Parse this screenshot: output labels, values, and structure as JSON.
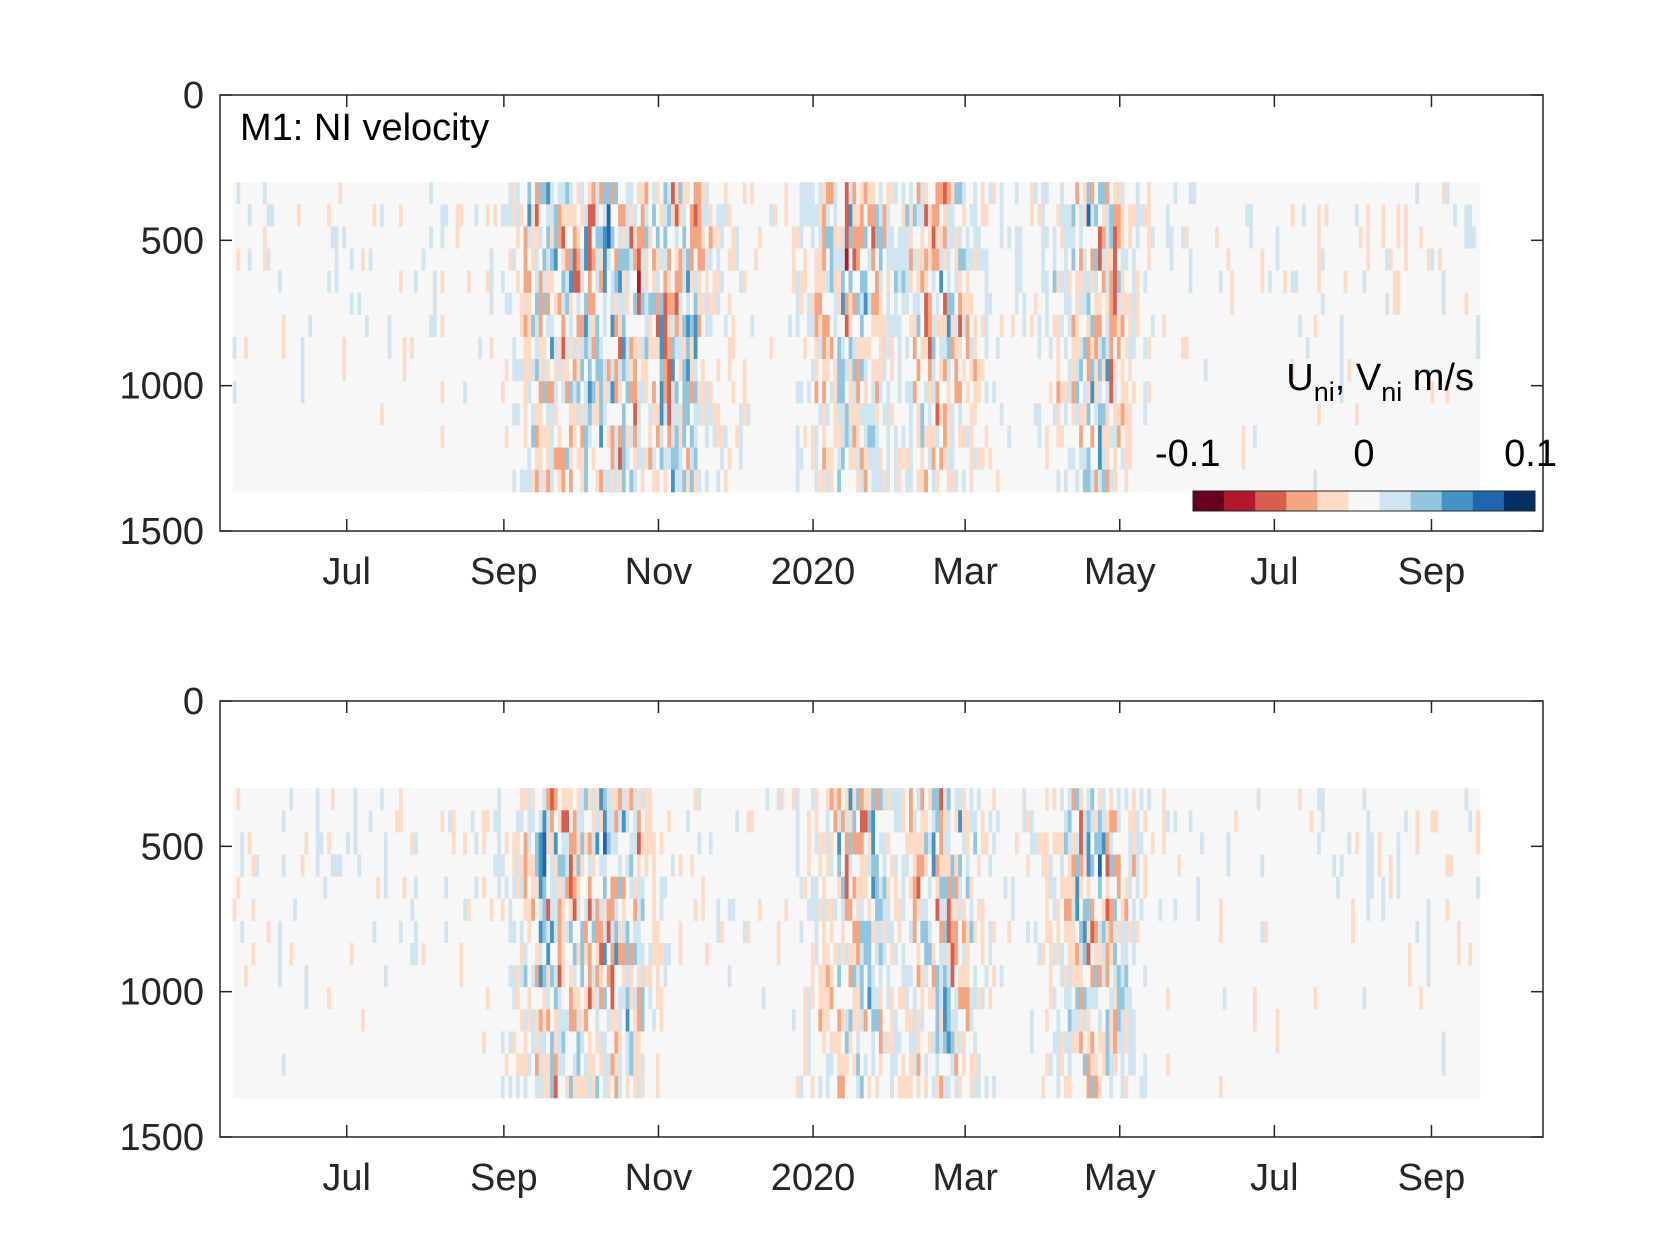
{
  "chart_data": [
    {
      "type": "heatmap",
      "panel_label": "M1: NI velocity",
      "variable": "U_ni",
      "x_tick_labels": [
        "Jul",
        "Sep",
        "Nov",
        "2020",
        "Mar",
        "May",
        "Jul",
        "Sep"
      ],
      "x_tick_dates": [
        "2019-07-01",
        "2019-09-01",
        "2019-11-01",
        "2020-01-01",
        "2020-03-01",
        "2020-05-01",
        "2020-07-01",
        "2020-09-01"
      ],
      "xlim": [
        "2019-05-12",
        "2020-10-15"
      ],
      "data_time_range": [
        "2019-05-17",
        "2020-09-20"
      ],
      "ylim": [
        0,
        1500
      ],
      "y_reversed": true,
      "y_ticks": [
        0,
        500,
        1000,
        1500
      ],
      "data_depth_range": [
        300,
        1365
      ],
      "color_range": [
        -0.1,
        0.1
      ],
      "colormap": "diverging red-white-blue",
      "colorbar": {
        "label_main_1": "U",
        "label_sub_1": "ni",
        "label_sep": ", ",
        "label_main_2": "V",
        "label_sub_2": "ni",
        "label_units": " m/s",
        "tick_labels": [
          "-0.1",
          "0",
          "0.1"
        ],
        "ticks": [
          -0.1,
          0,
          0.1
        ],
        "placement": "inside-bottom-right"
      },
      "energetic_periods": [
        "2019-09-20",
        "2019-10-15",
        "2019-11-10",
        "2020-01-15",
        "2020-02-20",
        "2020-04-20"
      ]
    },
    {
      "type": "heatmap",
      "variable": "V_ni",
      "x_tick_labels": [
        "Jul",
        "Sep",
        "Nov",
        "2020",
        "Mar",
        "May",
        "Jul",
        "Sep"
      ],
      "x_tick_dates": [
        "2019-07-01",
        "2019-09-01",
        "2019-11-01",
        "2020-01-01",
        "2020-03-01",
        "2020-05-01",
        "2020-07-01",
        "2020-09-01"
      ],
      "xlim": [
        "2019-05-12",
        "2020-10-15"
      ],
      "data_time_range": [
        "2019-05-17",
        "2020-09-20"
      ],
      "ylim": [
        0,
        1500
      ],
      "y_reversed": true,
      "y_ticks": [
        0,
        500,
        1000,
        1500
      ],
      "data_depth_range": [
        300,
        1365
      ],
      "color_range": [
        -0.1,
        0.1
      ],
      "colormap": "diverging red-white-blue",
      "energetic_periods": [
        "2019-09-20",
        "2019-10-15",
        "2020-01-15",
        "2020-02-20",
        "2020-04-20"
      ]
    }
  ],
  "colors": {
    "neg": [
      "#67001f",
      "#b2182b",
      "#d6604d",
      "#f4a582",
      "#fddbc7"
    ],
    "mid": "#f7f7f7",
    "pos": [
      "#d1e5f0",
      "#92c5de",
      "#4393c3",
      "#2166ac",
      "#053061"
    ],
    "axis": "#262626"
  }
}
